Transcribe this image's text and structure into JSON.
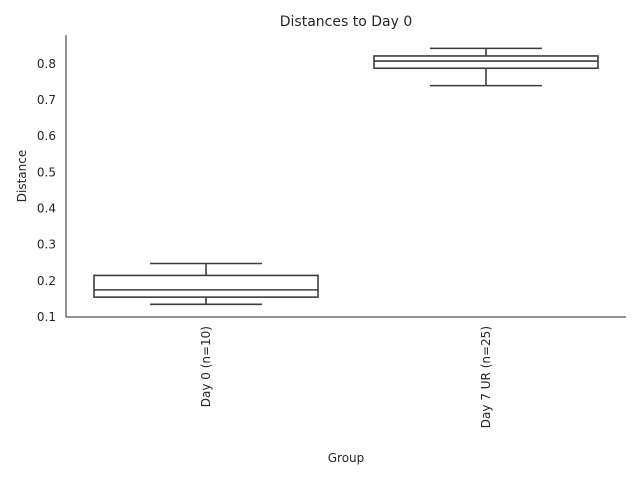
{
  "chart_data": {
    "type": "box",
    "title": "Distances to Day 0",
    "xlabel": "Group",
    "ylabel": "Distance",
    "ylim": [
      0.1,
      0.88
    ],
    "yticks": [
      0.1,
      0.2,
      0.3,
      0.4,
      0.5,
      0.6,
      0.7,
      0.8
    ],
    "yticklabels": [
      "0.1",
      "0.2",
      "0.3",
      "0.4",
      "0.5",
      "0.6",
      "0.7",
      "0.8"
    ],
    "grid": false,
    "categories": [
      "Day 0 (n=10)",
      "Day 7 UR (n=25)"
    ],
    "boxes": [
      {
        "whisker_low": 0.135,
        "q1": 0.155,
        "median": 0.175,
        "q3": 0.215,
        "whisker_high": 0.248
      },
      {
        "whisker_low": 0.74,
        "q1": 0.788,
        "median": 0.808,
        "q3": 0.822,
        "whisker_high": 0.843
      }
    ],
    "color": "#3d3d3d"
  }
}
